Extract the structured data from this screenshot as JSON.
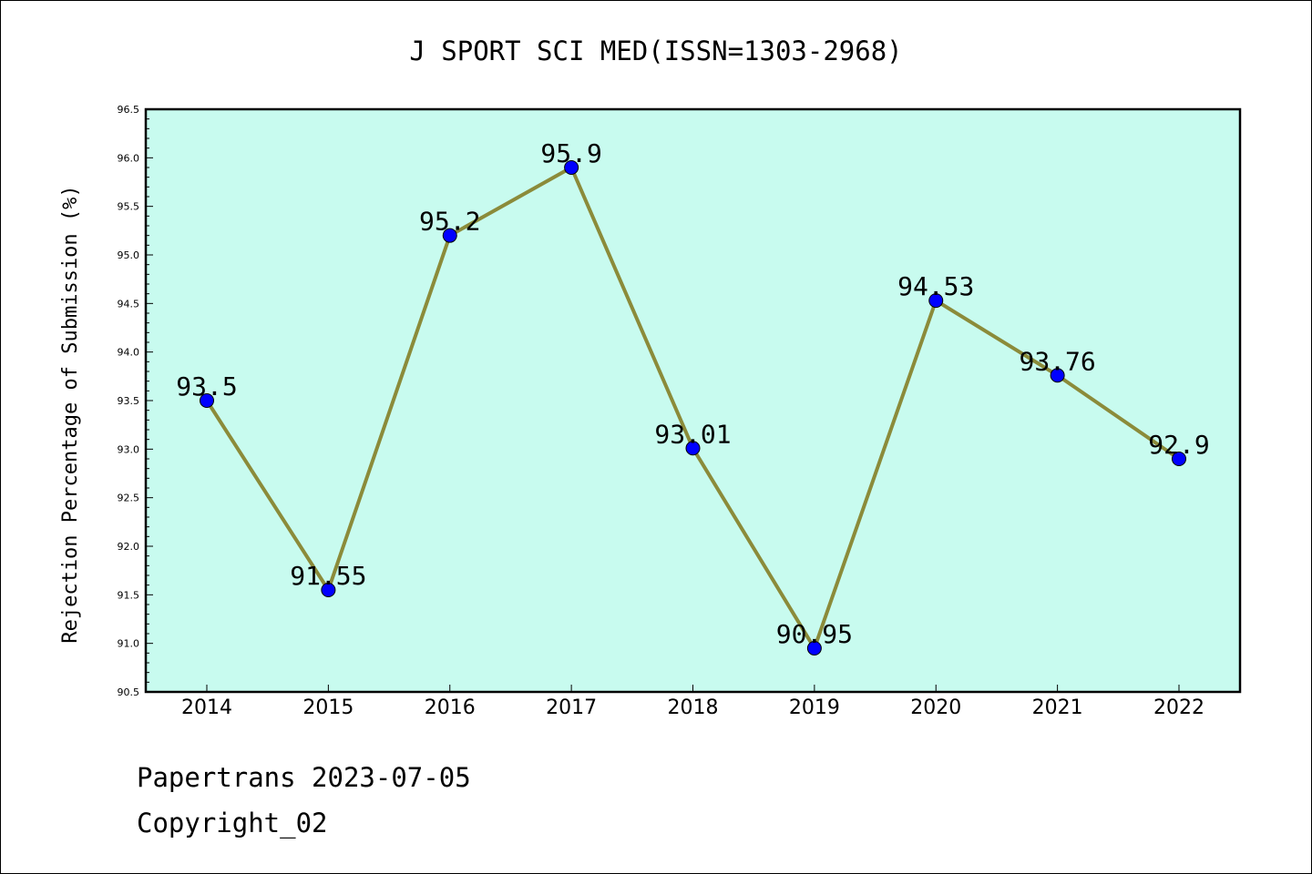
{
  "footer": {
    "line1": "Papertrans 2023-07-05",
    "line2": "Copyright_02"
  },
  "colors": {
    "plot_background": "#c8fbef",
    "line": "#8b8b3a",
    "marker": "#0000ff"
  },
  "chart_data": {
    "type": "line",
    "title": "J SPORT SCI MED(ISSN=1303-2968)",
    "xlabel": "",
    "ylabel": "Rejection Percentage of Submission (%)",
    "categories": [
      "2014",
      "2015",
      "2016",
      "2017",
      "2018",
      "2019",
      "2020",
      "2021",
      "2022"
    ],
    "series": [
      {
        "name": "Rejection Percentage",
        "values": [
          93.5,
          91.55,
          95.2,
          95.9,
          93.01,
          90.95,
          94.53,
          93.76,
          92.9
        ],
        "labels": [
          "93.5",
          "91.55",
          "95.2",
          "95.9",
          "93.01",
          "90.95",
          "94.53",
          "93.76",
          "92.9"
        ]
      }
    ],
    "ylim": [
      90.5,
      96.5
    ],
    "yticks": [
      "90.5",
      "91.0",
      "91.5",
      "92.0",
      "92.5",
      "93.0",
      "93.5",
      "94.0",
      "94.5",
      "95.0",
      "95.5",
      "96.0",
      "96.5"
    ],
    "grid": false,
    "legend": "none"
  }
}
